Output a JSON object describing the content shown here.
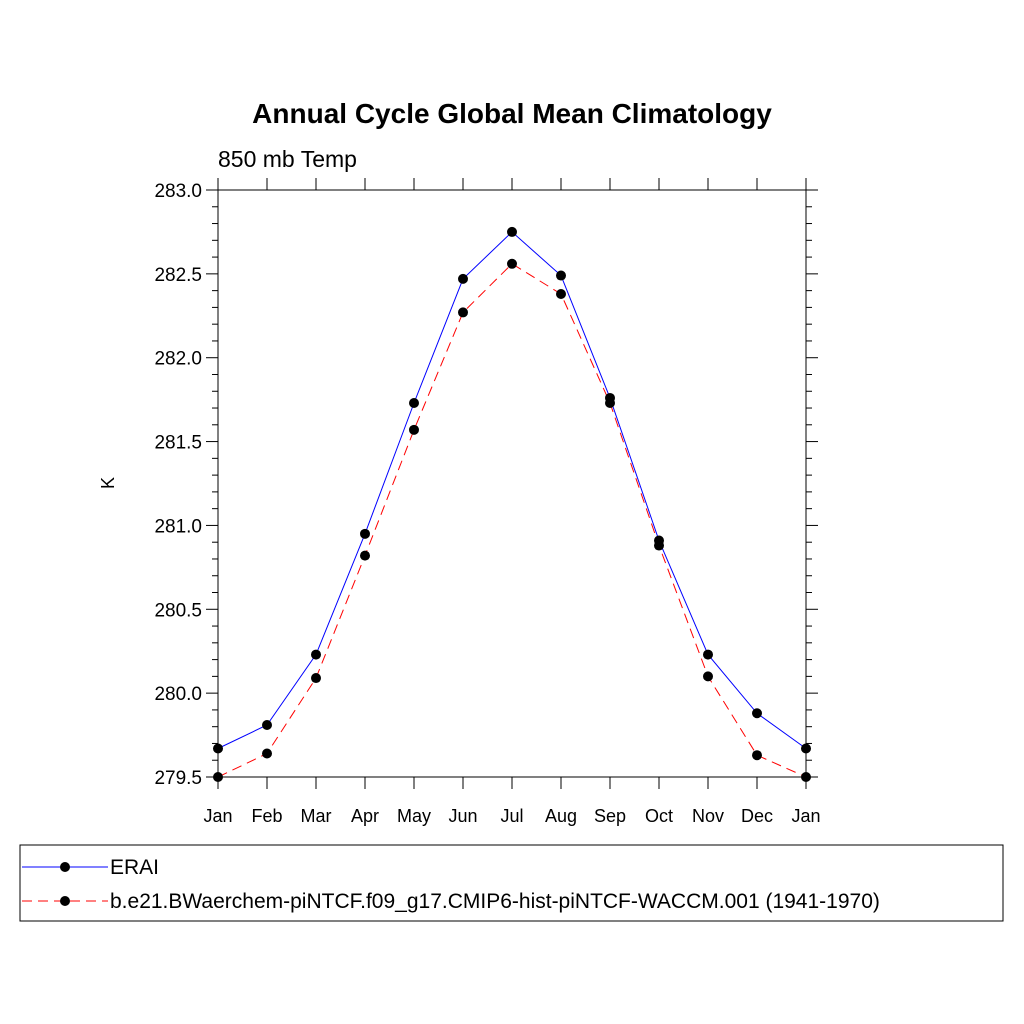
{
  "chart_data": {
    "type": "line",
    "title": "Annual Cycle Global Mean Climatology",
    "subtitle": "850 mb Temp",
    "ylabel": "K",
    "xlabel": "",
    "categories": [
      "Jan",
      "Feb",
      "Mar",
      "Apr",
      "May",
      "Jun",
      "Jul",
      "Aug",
      "Sep",
      "Oct",
      "Nov",
      "Dec",
      "Jan"
    ],
    "ylim": [
      279.5,
      283.0
    ],
    "yticks": [
      "279.5",
      "280.0",
      "280.5",
      "281.0",
      "281.5",
      "282.0",
      "282.5",
      "283.0"
    ],
    "grid": false,
    "legend_placement": "bottom",
    "series": [
      {
        "name": "ERAI",
        "color": "#0000ff",
        "dash": "solid",
        "values": [
          279.67,
          279.81,
          280.23,
          280.95,
          281.73,
          282.47,
          282.75,
          282.49,
          281.76,
          280.91,
          280.23,
          279.88,
          279.67
        ]
      },
      {
        "name": "b.e21.BWaerchem-piNTCF.f09_g17.CMIP6-hist-piNTCF-WACCM.001 (1941-1970)",
        "color": "#ff0000",
        "dash": "dashed",
        "values": [
          279.5,
          279.64,
          280.09,
          280.82,
          281.57,
          282.27,
          282.56,
          282.38,
          281.73,
          280.88,
          280.1,
          279.63,
          279.5
        ]
      }
    ]
  }
}
